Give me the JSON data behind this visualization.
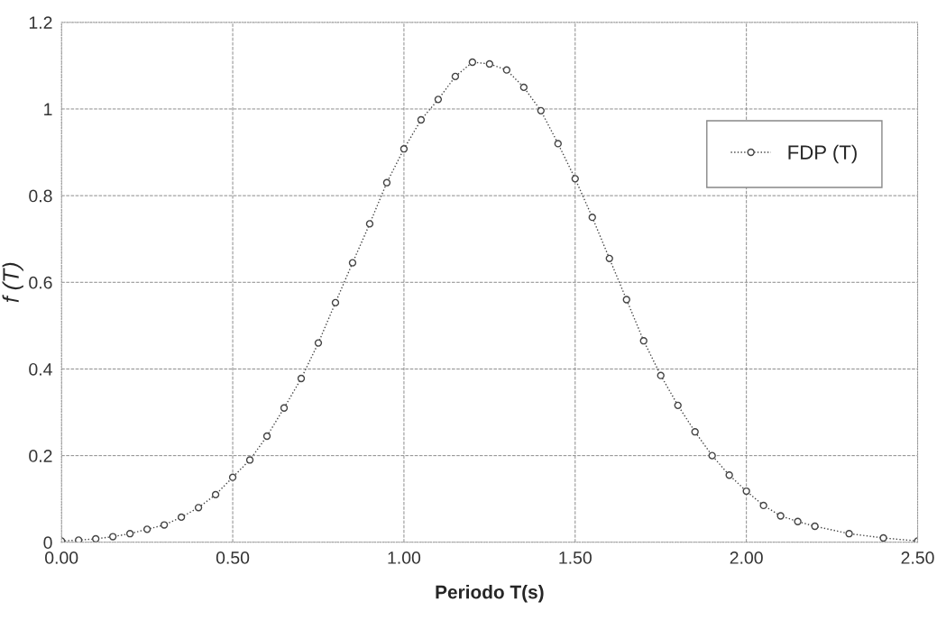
{
  "chart_data": {
    "type": "line",
    "xlabel": "Periodo T(s)",
    "ylabel": "f (T)",
    "x": [
      0,
      0.05,
      0.1,
      0.15,
      0.2,
      0.25,
      0.3,
      0.35,
      0.4,
      0.45,
      0.5,
      0.55,
      0.6,
      0.65,
      0.7,
      0.75,
      0.8,
      0.85,
      0.9,
      0.95,
      1.0,
      1.05,
      1.1,
      1.15,
      1.2,
      1.25,
      1.3,
      1.35,
      1.4,
      1.45,
      1.5,
      1.55,
      1.6,
      1.65,
      1.7,
      1.75,
      1.8,
      1.85,
      1.9,
      1.95,
      2.0,
      2.05,
      2.1,
      2.15,
      2.2,
      2.3,
      2.4,
      2.5
    ],
    "series": [
      {
        "name": "FDP (T)",
        "color": "#444444",
        "values": [
          0.003,
          0.005,
          0.008,
          0.013,
          0.02,
          0.03,
          0.04,
          0.058,
          0.08,
          0.11,
          0.15,
          0.19,
          0.245,
          0.31,
          0.378,
          0.46,
          0.553,
          0.645,
          0.735,
          0.83,
          0.908,
          0.975,
          1.022,
          1.075,
          1.108,
          1.104,
          1.09,
          1.05,
          0.996,
          0.92,
          0.839,
          0.75,
          0.655,
          0.56,
          0.465,
          0.385,
          0.316,
          0.255,
          0.2,
          0.155,
          0.118,
          0.085,
          0.061,
          0.048,
          0.037,
          0.02,
          0.01,
          0.003
        ]
      }
    ],
    "xlim": [
      0,
      2.5
    ],
    "ylim": [
      0,
      1.2
    ],
    "xticks": [
      {
        "value": 0,
        "label": "0.00"
      },
      {
        "value": 0.5,
        "label": "0.50"
      },
      {
        "value": 1.0,
        "label": "1.00"
      },
      {
        "value": 1.5,
        "label": "1.50"
      },
      {
        "value": 2.0,
        "label": "2.00"
      },
      {
        "value": 2.5,
        "label": "2.50"
      }
    ],
    "yticks": [
      0,
      0.2,
      0.4,
      0.6,
      0.8,
      1,
      1.2
    ],
    "grid": true,
    "legend": "top right",
    "marker": "circle",
    "line_style": "dotted"
  }
}
